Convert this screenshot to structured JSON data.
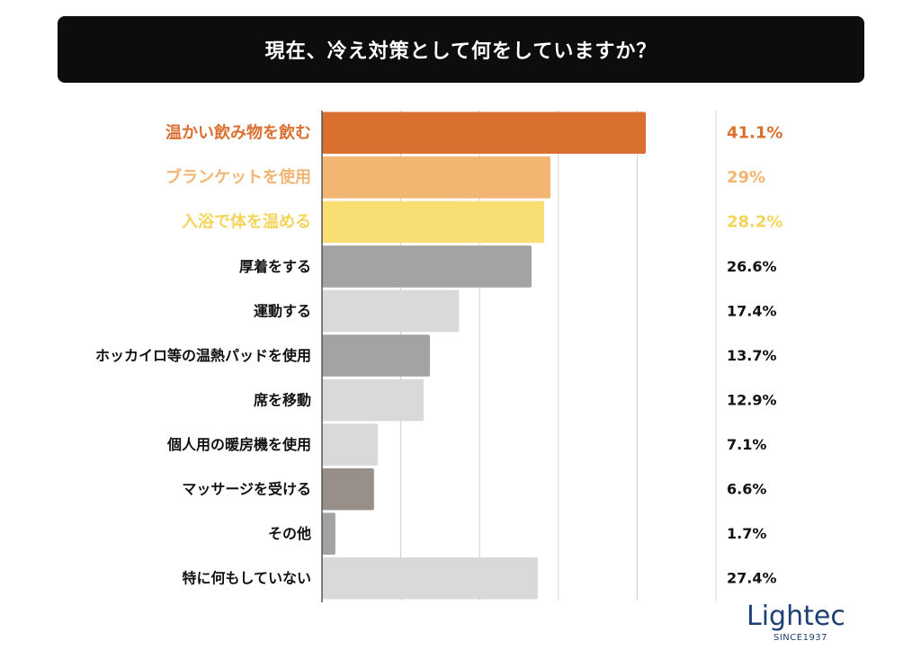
{
  "title": "現在、冷え対策として何をしていますか？",
  "chart_data": {
    "type": "bar",
    "orientation": "horizontal",
    "title": "現在、冷え対策として何をしていますか？",
    "categories": [
      "温かい飲み物を飲む",
      "ブランケットを使用",
      "入浴で体を温める",
      "厚着をする",
      "運動する",
      "ホッカイロ等の温熱パッドを使用",
      "席を移動",
      "個人用の暖房機を使用",
      "マッサージを受ける",
      "その他",
      "特に何もしていない"
    ],
    "values": [
      41.1,
      29,
      28.2,
      26.6,
      17.4,
      13.7,
      12.9,
      7.1,
      6.6,
      1.7,
      27.4
    ],
    "value_labels": [
      "41.1%",
      "29%",
      "28.2%",
      "26.6%",
      "17.4%",
      "13.7%",
      "12.9%",
      "7.1%",
      "6.6%",
      "1.7%",
      "27.4%"
    ],
    "colors": [
      "#d97030",
      "#f2b672",
      "#f9de74",
      "#a3a3a3",
      "#d9d9d9",
      "#a3a3a3",
      "#d9d9d9",
      "#d9d9d9",
      "#998f89",
      "#a3a3a3",
      "#d9d9d9"
    ],
    "label_colors": [
      "#d97030",
      "#f2b672",
      "#f5d45c",
      "#111111",
      "#111111",
      "#111111",
      "#111111",
      "#111111",
      "#111111",
      "#111111",
      "#111111"
    ],
    "xlim": [
      0,
      50
    ],
    "grid": true
  },
  "logo": {
    "word": "Lightec",
    "since": "SINCE1937",
    "color": "#1e3f73"
  }
}
